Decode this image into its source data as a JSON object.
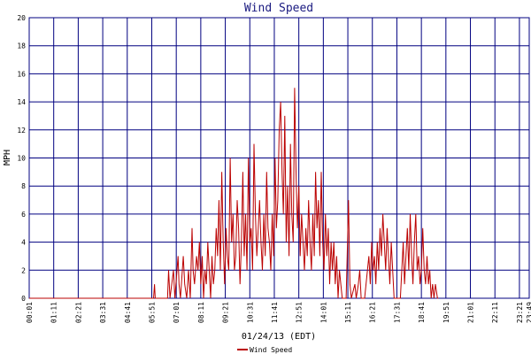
{
  "chart_data": {
    "type": "line",
    "title": "Wind Speed",
    "xlabel": "01/24/13 (EDT)",
    "ylabel": "MPH",
    "ylim": [
      0,
      20
    ],
    "yticks": [
      0,
      2,
      4,
      6,
      8,
      10,
      12,
      14,
      16,
      18,
      20
    ],
    "grid": true,
    "legend_position": "bottom-left",
    "xtick_labels": [
      "00:01",
      "01:11",
      "02:21",
      "03:31",
      "04:41",
      "05:51",
      "07:01",
      "08:11",
      "09:21",
      "10:31",
      "11:41",
      "12:51",
      "14:01",
      "15:11",
      "16:21",
      "17:31",
      "18:41",
      "19:51",
      "21:01",
      "22:11",
      "23:21",
      "23:49"
    ],
    "colors": {
      "series": "#bb0000",
      "grid": "#000080",
      "title": "#1a1a80"
    },
    "series": [
      {
        "name": "Wind Speed",
        "x_unit": "minutes since 00:01",
        "points": [
          [
            0,
            0
          ],
          [
            355,
            0
          ],
          [
            358,
            1
          ],
          [
            360,
            0
          ],
          [
            395,
            0
          ],
          [
            398,
            2
          ],
          [
            402,
            0
          ],
          [
            412,
            2
          ],
          [
            416,
            0
          ],
          [
            425,
            3
          ],
          [
            428,
            1
          ],
          [
            432,
            0
          ],
          [
            440,
            3
          ],
          [
            444,
            1
          ],
          [
            450,
            0
          ],
          [
            455,
            2
          ],
          [
            460,
            0
          ],
          [
            465,
            5
          ],
          [
            468,
            2
          ],
          [
            472,
            1
          ],
          [
            478,
            3
          ],
          [
            482,
            2
          ],
          [
            486,
            4
          ],
          [
            490,
            1
          ],
          [
            494,
            3
          ],
          [
            498,
            0
          ],
          [
            502,
            2
          ],
          [
            506,
            1
          ],
          [
            510,
            4
          ],
          [
            514,
            2
          ],
          [
            518,
            0
          ],
          [
            522,
            3
          ],
          [
            526,
            1
          ],
          [
            530,
            2
          ],
          [
            534,
            5
          ],
          [
            538,
            3
          ],
          [
            542,
            7
          ],
          [
            546,
            2
          ],
          [
            550,
            9
          ],
          [
            554,
            4
          ],
          [
            558,
            1
          ],
          [
            562,
            5
          ],
          [
            566,
            3
          ],
          [
            570,
            2
          ],
          [
            574,
            10
          ],
          [
            578,
            4
          ],
          [
            582,
            6
          ],
          [
            586,
            2
          ],
          [
            590,
            3
          ],
          [
            594,
            7
          ],
          [
            598,
            5
          ],
          [
            602,
            1
          ],
          [
            606,
            4
          ],
          [
            610,
            9
          ],
          [
            614,
            3
          ],
          [
            618,
            6
          ],
          [
            622,
            2
          ],
          [
            626,
            10
          ],
          [
            630,
            4
          ],
          [
            634,
            5
          ],
          [
            638,
            2
          ],
          [
            642,
            11
          ],
          [
            646,
            6
          ],
          [
            650,
            3
          ],
          [
            654,
            5
          ],
          [
            658,
            7
          ],
          [
            662,
            4
          ],
          [
            666,
            2
          ],
          [
            670,
            6
          ],
          [
            674,
            3
          ],
          [
            678,
            9
          ],
          [
            682,
            5
          ],
          [
            686,
            4
          ],
          [
            690,
            2
          ],
          [
            694,
            6
          ],
          [
            698,
            3
          ],
          [
            702,
            10
          ],
          [
            706,
            5
          ],
          [
            710,
            7
          ],
          [
            714,
            12
          ],
          [
            718,
            14
          ],
          [
            722,
            9
          ],
          [
            726,
            6
          ],
          [
            730,
            13
          ],
          [
            734,
            4
          ],
          [
            738,
            8
          ],
          [
            742,
            3
          ],
          [
            746,
            11
          ],
          [
            750,
            6
          ],
          [
            754,
            4
          ],
          [
            758,
            15
          ],
          [
            762,
            9
          ],
          [
            766,
            5
          ],
          [
            770,
            8
          ],
          [
            774,
            3
          ],
          [
            778,
            6
          ],
          [
            782,
            4
          ],
          [
            786,
            2
          ],
          [
            790,
            5
          ],
          [
            794,
            3
          ],
          [
            798,
            7
          ],
          [
            802,
            4
          ],
          [
            806,
            2
          ],
          [
            810,
            6
          ],
          [
            814,
            3
          ],
          [
            818,
            9
          ],
          [
            822,
            5
          ],
          [
            826,
            7
          ],
          [
            830,
            3
          ],
          [
            834,
            9
          ],
          [
            838,
            4
          ],
          [
            842,
            2
          ],
          [
            846,
            6
          ],
          [
            850,
            3
          ],
          [
            854,
            5
          ],
          [
            858,
            1
          ],
          [
            862,
            4
          ],
          [
            866,
            2
          ],
          [
            870,
            4
          ],
          [
            874,
            1
          ],
          [
            878,
            3
          ],
          [
            882,
            0
          ],
          [
            886,
            2
          ],
          [
            890,
            1
          ],
          [
            894,
            0
          ],
          [
            905,
            0
          ],
          [
            908,
            3
          ],
          [
            912,
            7
          ],
          [
            916,
            1
          ],
          [
            920,
            0
          ],
          [
            930,
            1
          ],
          [
            934,
            0
          ],
          [
            940,
            1
          ],
          [
            944,
            2
          ],
          [
            948,
            0
          ],
          [
            958,
            0
          ],
          [
            962,
            1
          ],
          [
            966,
            2
          ],
          [
            970,
            3
          ],
          [
            974,
            1
          ],
          [
            978,
            4
          ],
          [
            982,
            2
          ],
          [
            986,
            3
          ],
          [
            990,
            1
          ],
          [
            994,
            4
          ],
          [
            998,
            2
          ],
          [
            1002,
            5
          ],
          [
            1006,
            3
          ],
          [
            1010,
            6
          ],
          [
            1014,
            4
          ],
          [
            1018,
            2
          ],
          [
            1022,
            5
          ],
          [
            1026,
            3
          ],
          [
            1030,
            1
          ],
          [
            1034,
            4
          ],
          [
            1038,
            2
          ],
          [
            1042,
            0
          ],
          [
            1060,
            0
          ],
          [
            1064,
            2
          ],
          [
            1068,
            4
          ],
          [
            1072,
            1
          ],
          [
            1076,
            3
          ],
          [
            1080,
            5
          ],
          [
            1084,
            2
          ],
          [
            1088,
            6
          ],
          [
            1092,
            3
          ],
          [
            1096,
            1
          ],
          [
            1100,
            4
          ],
          [
            1104,
            6
          ],
          [
            1108,
            2
          ],
          [
            1112,
            3
          ],
          [
            1116,
            1
          ],
          [
            1120,
            2
          ],
          [
            1124,
            5
          ],
          [
            1128,
            2
          ],
          [
            1132,
            1
          ],
          [
            1136,
            3
          ],
          [
            1140,
            1
          ],
          [
            1144,
            2
          ],
          [
            1148,
            0
          ],
          [
            1152,
            1
          ],
          [
            1156,
            0
          ],
          [
            1160,
            1
          ],
          [
            1166,
            0
          ],
          [
            1168,
            0
          ]
        ]
      }
    ]
  }
}
